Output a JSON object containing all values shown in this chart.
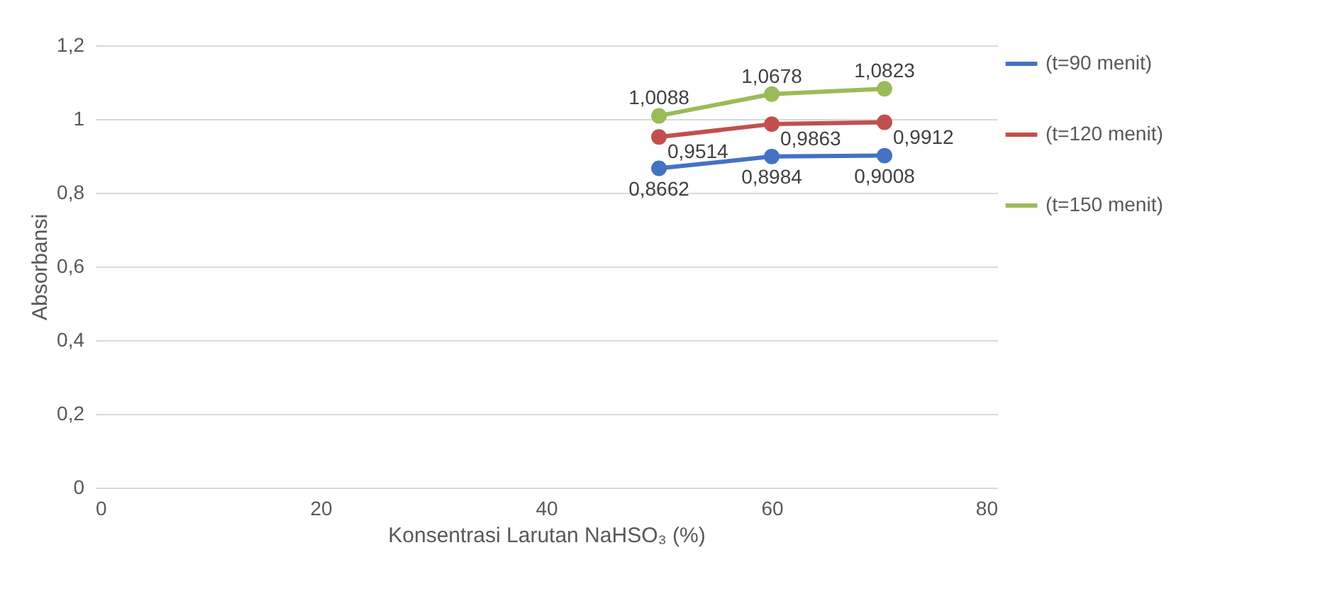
{
  "chart_data": {
    "type": "line",
    "xlabel": "Konsentrasi Larutan NaHSO₃ (%)",
    "ylabel": "Absorbansi",
    "x": [
      50,
      60,
      70
    ],
    "series": [
      {
        "name": "(t=90 menit)",
        "color": "#4472c4",
        "values": [
          0.8662,
          0.8984,
          0.9008
        ],
        "value_labels": [
          "0,8662",
          "0,8984",
          "0,9008"
        ]
      },
      {
        "name": "(t=120 menit)",
        "color": "#c0504d",
        "values": [
          0.9514,
          0.9863,
          0.9912
        ],
        "value_labels": [
          "0,9514",
          "0,9863",
          "0,9912"
        ]
      },
      {
        "name": "(t=150 menit)",
        "color": "#9bbb59",
        "values": [
          1.0088,
          1.0678,
          1.0823
        ],
        "value_labels": [
          "1,0088",
          "1,0678",
          "1,0823"
        ]
      }
    ],
    "xlim": [
      0,
      80
    ],
    "xticks": [
      0,
      20,
      40,
      60,
      80
    ],
    "ylim": [
      0,
      1.2
    ],
    "yticks": [
      0,
      {
        "value": 0.2,
        "label": "0,2"
      },
      {
        "value": 0.4,
        "label": "0,4"
      },
      {
        "value": 0.6,
        "label": "0,6"
      },
      {
        "value": 0.8,
        "label": "0,8"
      },
      1,
      {
        "value": 1.2,
        "label": "1,2"
      }
    ],
    "grid": "y",
    "legend": "right",
    "marker": "circle",
    "line_style": "solid"
  }
}
